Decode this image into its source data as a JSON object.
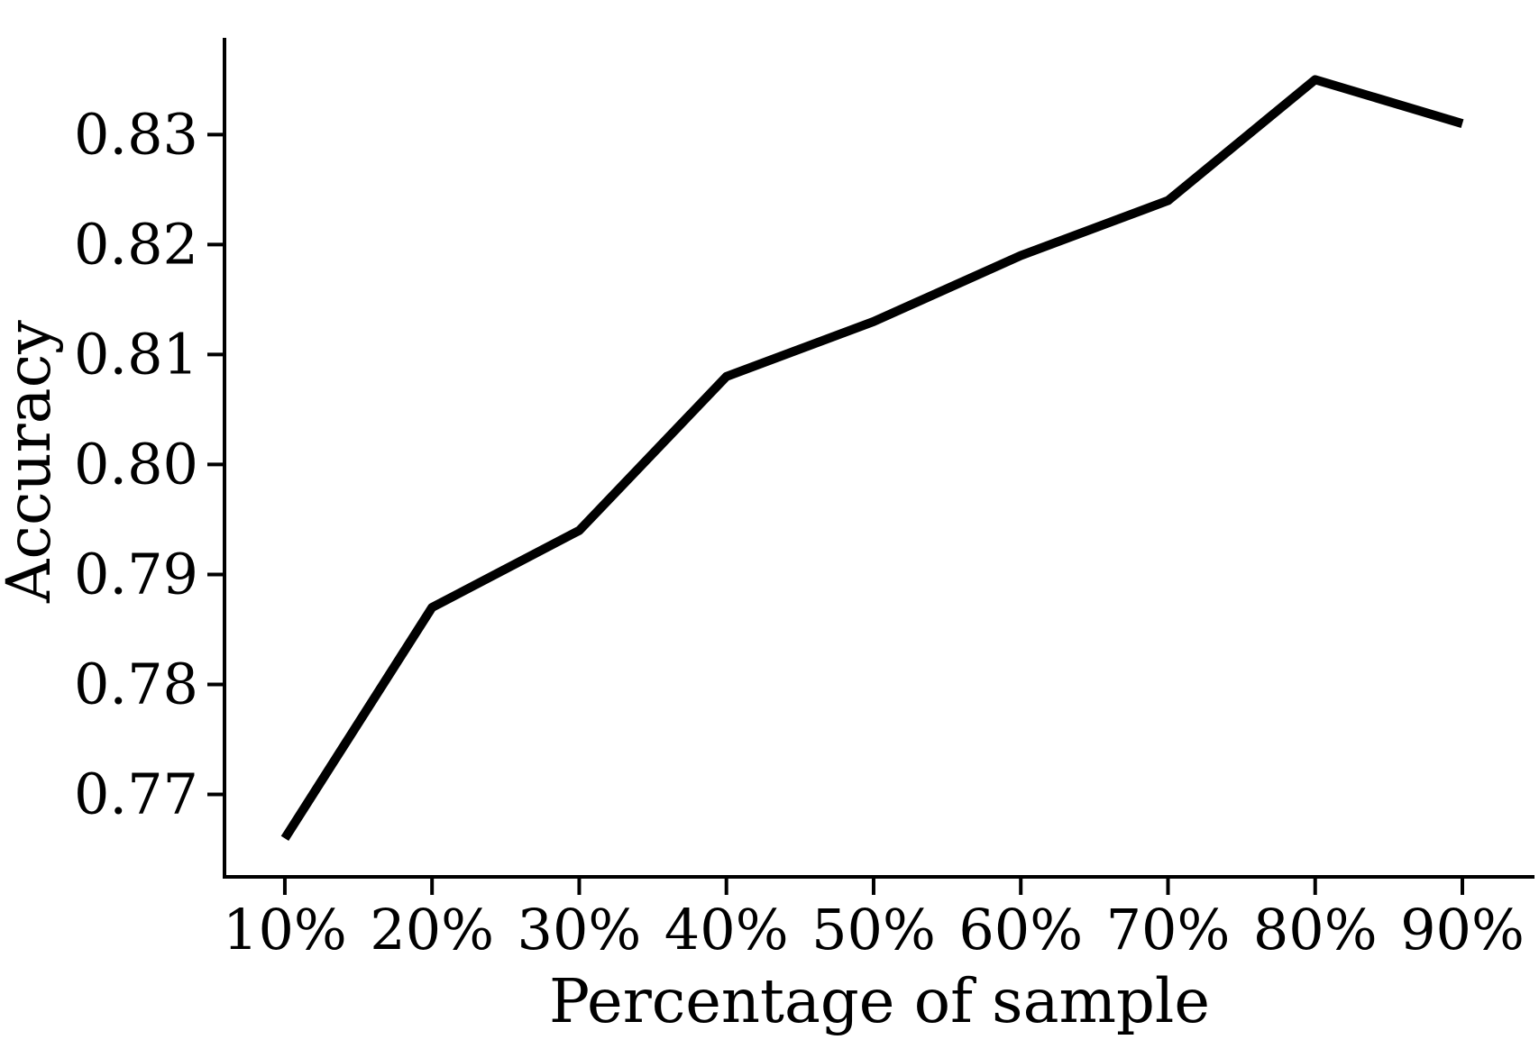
{
  "chart_data": {
    "type": "line",
    "title": "",
    "xlabel": "Percentage of sample",
    "ylabel": "Accuracy",
    "categories": [
      "10%",
      "20%",
      "30%",
      "40%",
      "50%",
      "60%",
      "70%",
      "80%",
      "90%"
    ],
    "x_numeric": [
      10,
      20,
      30,
      40,
      50,
      60,
      70,
      80,
      90
    ],
    "series": [
      {
        "name": "Accuracy",
        "values": [
          0.766,
          0.787,
          0.794,
          0.808,
          0.813,
          0.819,
          0.824,
          0.835,
          0.831
        ]
      }
    ],
    "y_ticks": [
      0.77,
      0.78,
      0.79,
      0.8,
      0.81,
      0.82,
      0.83
    ],
    "y_tick_labels": [
      "0.77",
      "0.78",
      "0.79",
      "0.80",
      "0.81",
      "0.82",
      "0.83"
    ],
    "xlim": [
      5.9,
      94.9
    ],
    "ylim": [
      0.7625,
      0.8388
    ],
    "grid": false,
    "legend_position": "none",
    "line_color": "#000000",
    "axis_color": "#000000",
    "background_color": "#ffffff"
  }
}
